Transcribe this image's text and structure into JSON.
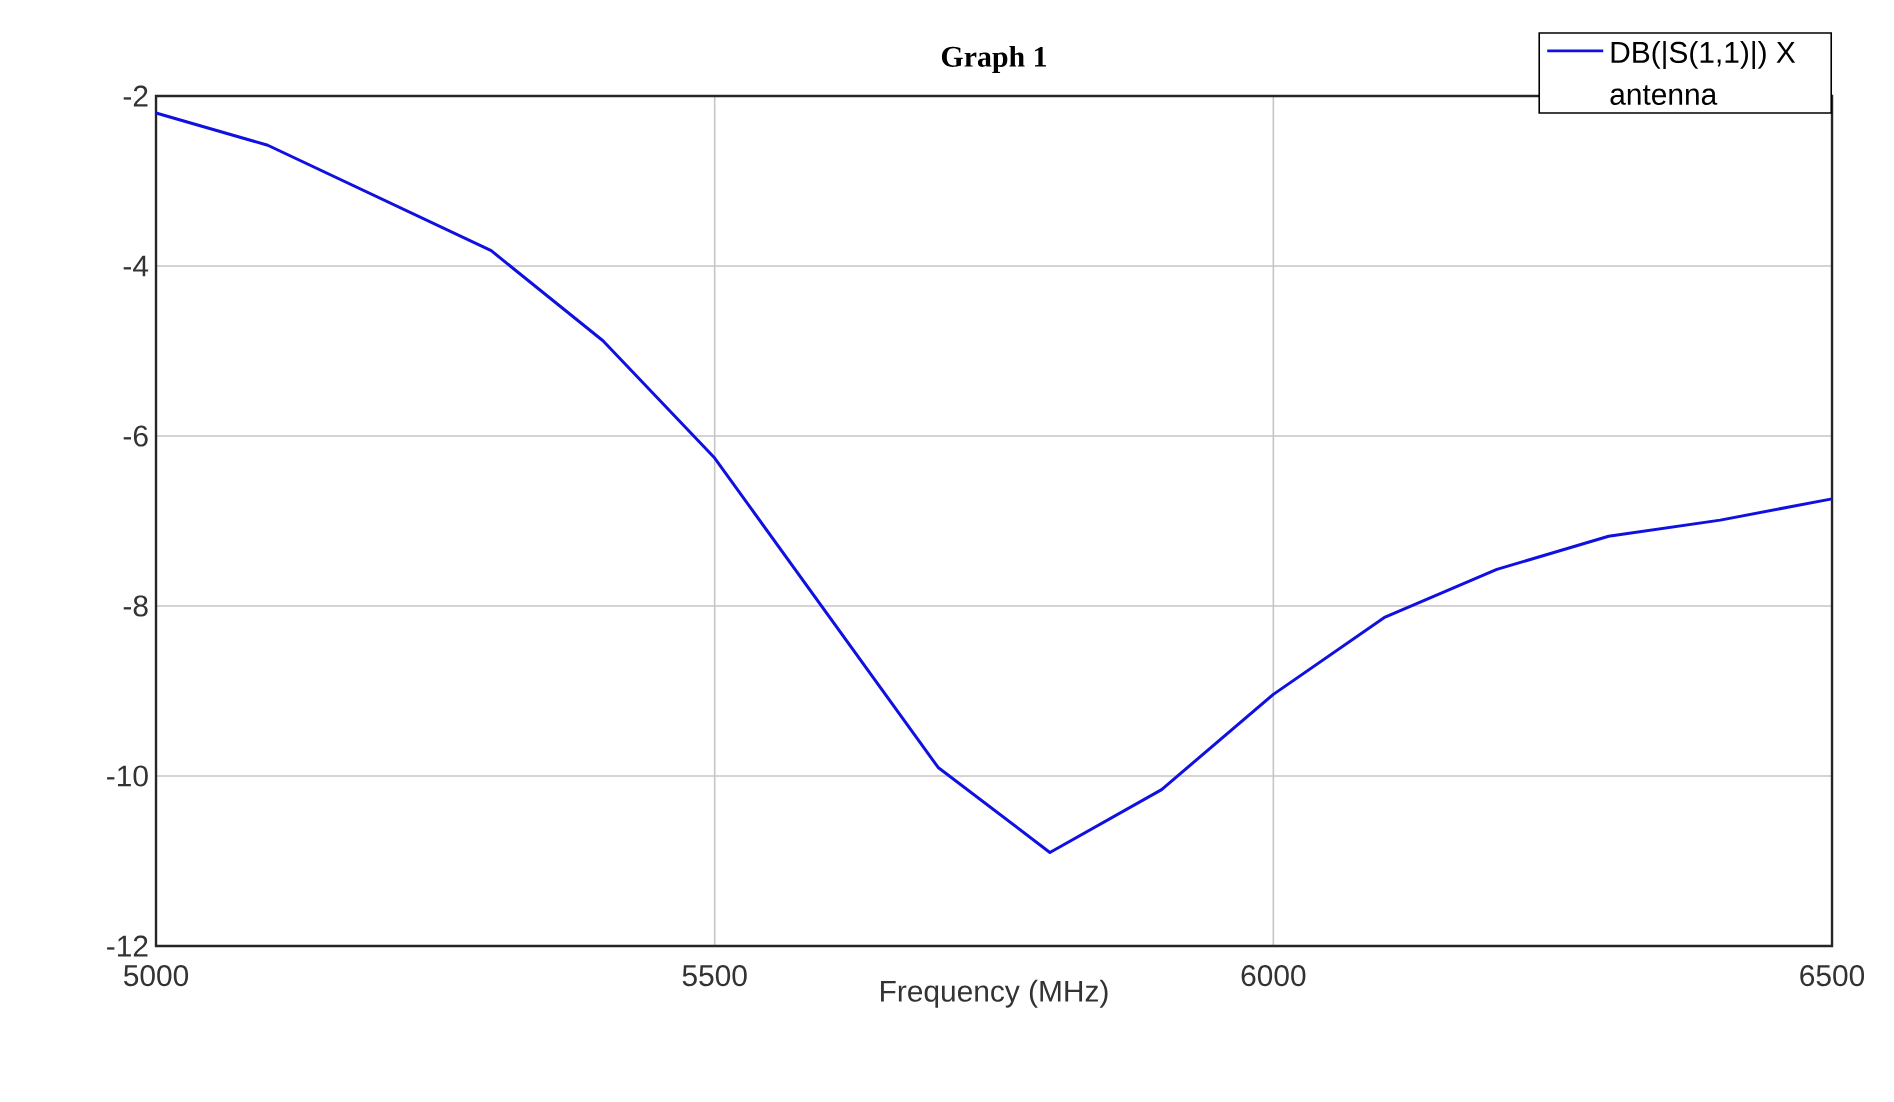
{
  "chart_data": {
    "type": "line",
    "title": "Graph 1",
    "xlabel": "Frequency (MHz)",
    "x": [
      5000,
      5100,
      5200,
      5300,
      5400,
      5500,
      5600,
      5700,
      5800,
      5900,
      6000,
      6100,
      6200,
      6300,
      6400,
      6500
    ],
    "series": [
      {
        "name": "DB(|S(1,1)|) X antenna",
        "color": "#1010e0",
        "values": [
          -2.2,
          -2.58,
          -3.2,
          -3.82,
          -4.88,
          -6.26,
          -8.08,
          -9.9,
          -10.9,
          -10.16,
          -9.04,
          -8.13,
          -7.57,
          -7.18,
          -6.99,
          -6.74
        ]
      }
    ],
    "xlim": [
      5000,
      6500
    ],
    "xticks": [
      5000,
      5500,
      6000,
      6500
    ],
    "ylim": [
      -12,
      -2
    ],
    "yticks": [
      -12,
      -10,
      -8,
      -6,
      -4,
      -2
    ],
    "grid": true,
    "legend": "top right",
    "marker": "none",
    "line_style": "solid"
  }
}
